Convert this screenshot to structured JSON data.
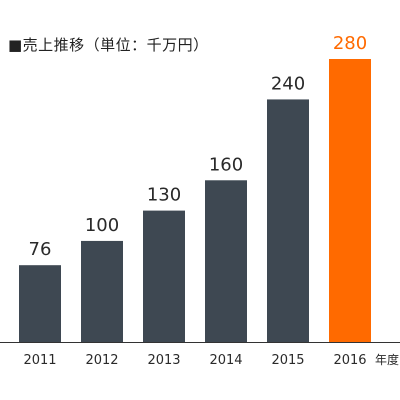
{
  "chart_data": {
    "type": "bar",
    "title": "■売上推移（単位：千万円）",
    "categories": [
      "2011",
      "2012",
      "2013",
      "2014",
      "2015",
      "2016"
    ],
    "values": [
      76,
      100,
      130,
      160,
      240,
      280
    ],
    "value_labels": [
      "76",
      "100",
      "130",
      "160",
      "240",
      "280"
    ],
    "x_unit": "年度",
    "ylim": [
      0,
      280
    ],
    "grid": false,
    "legend": "none",
    "colors": {
      "bar": "#3e4852",
      "highlight": "#ff6a00",
      "label": "#2a2a2a",
      "highlight_label": "#ff6a00",
      "axis": "#333333"
    },
    "highlight_category": "2016"
  }
}
